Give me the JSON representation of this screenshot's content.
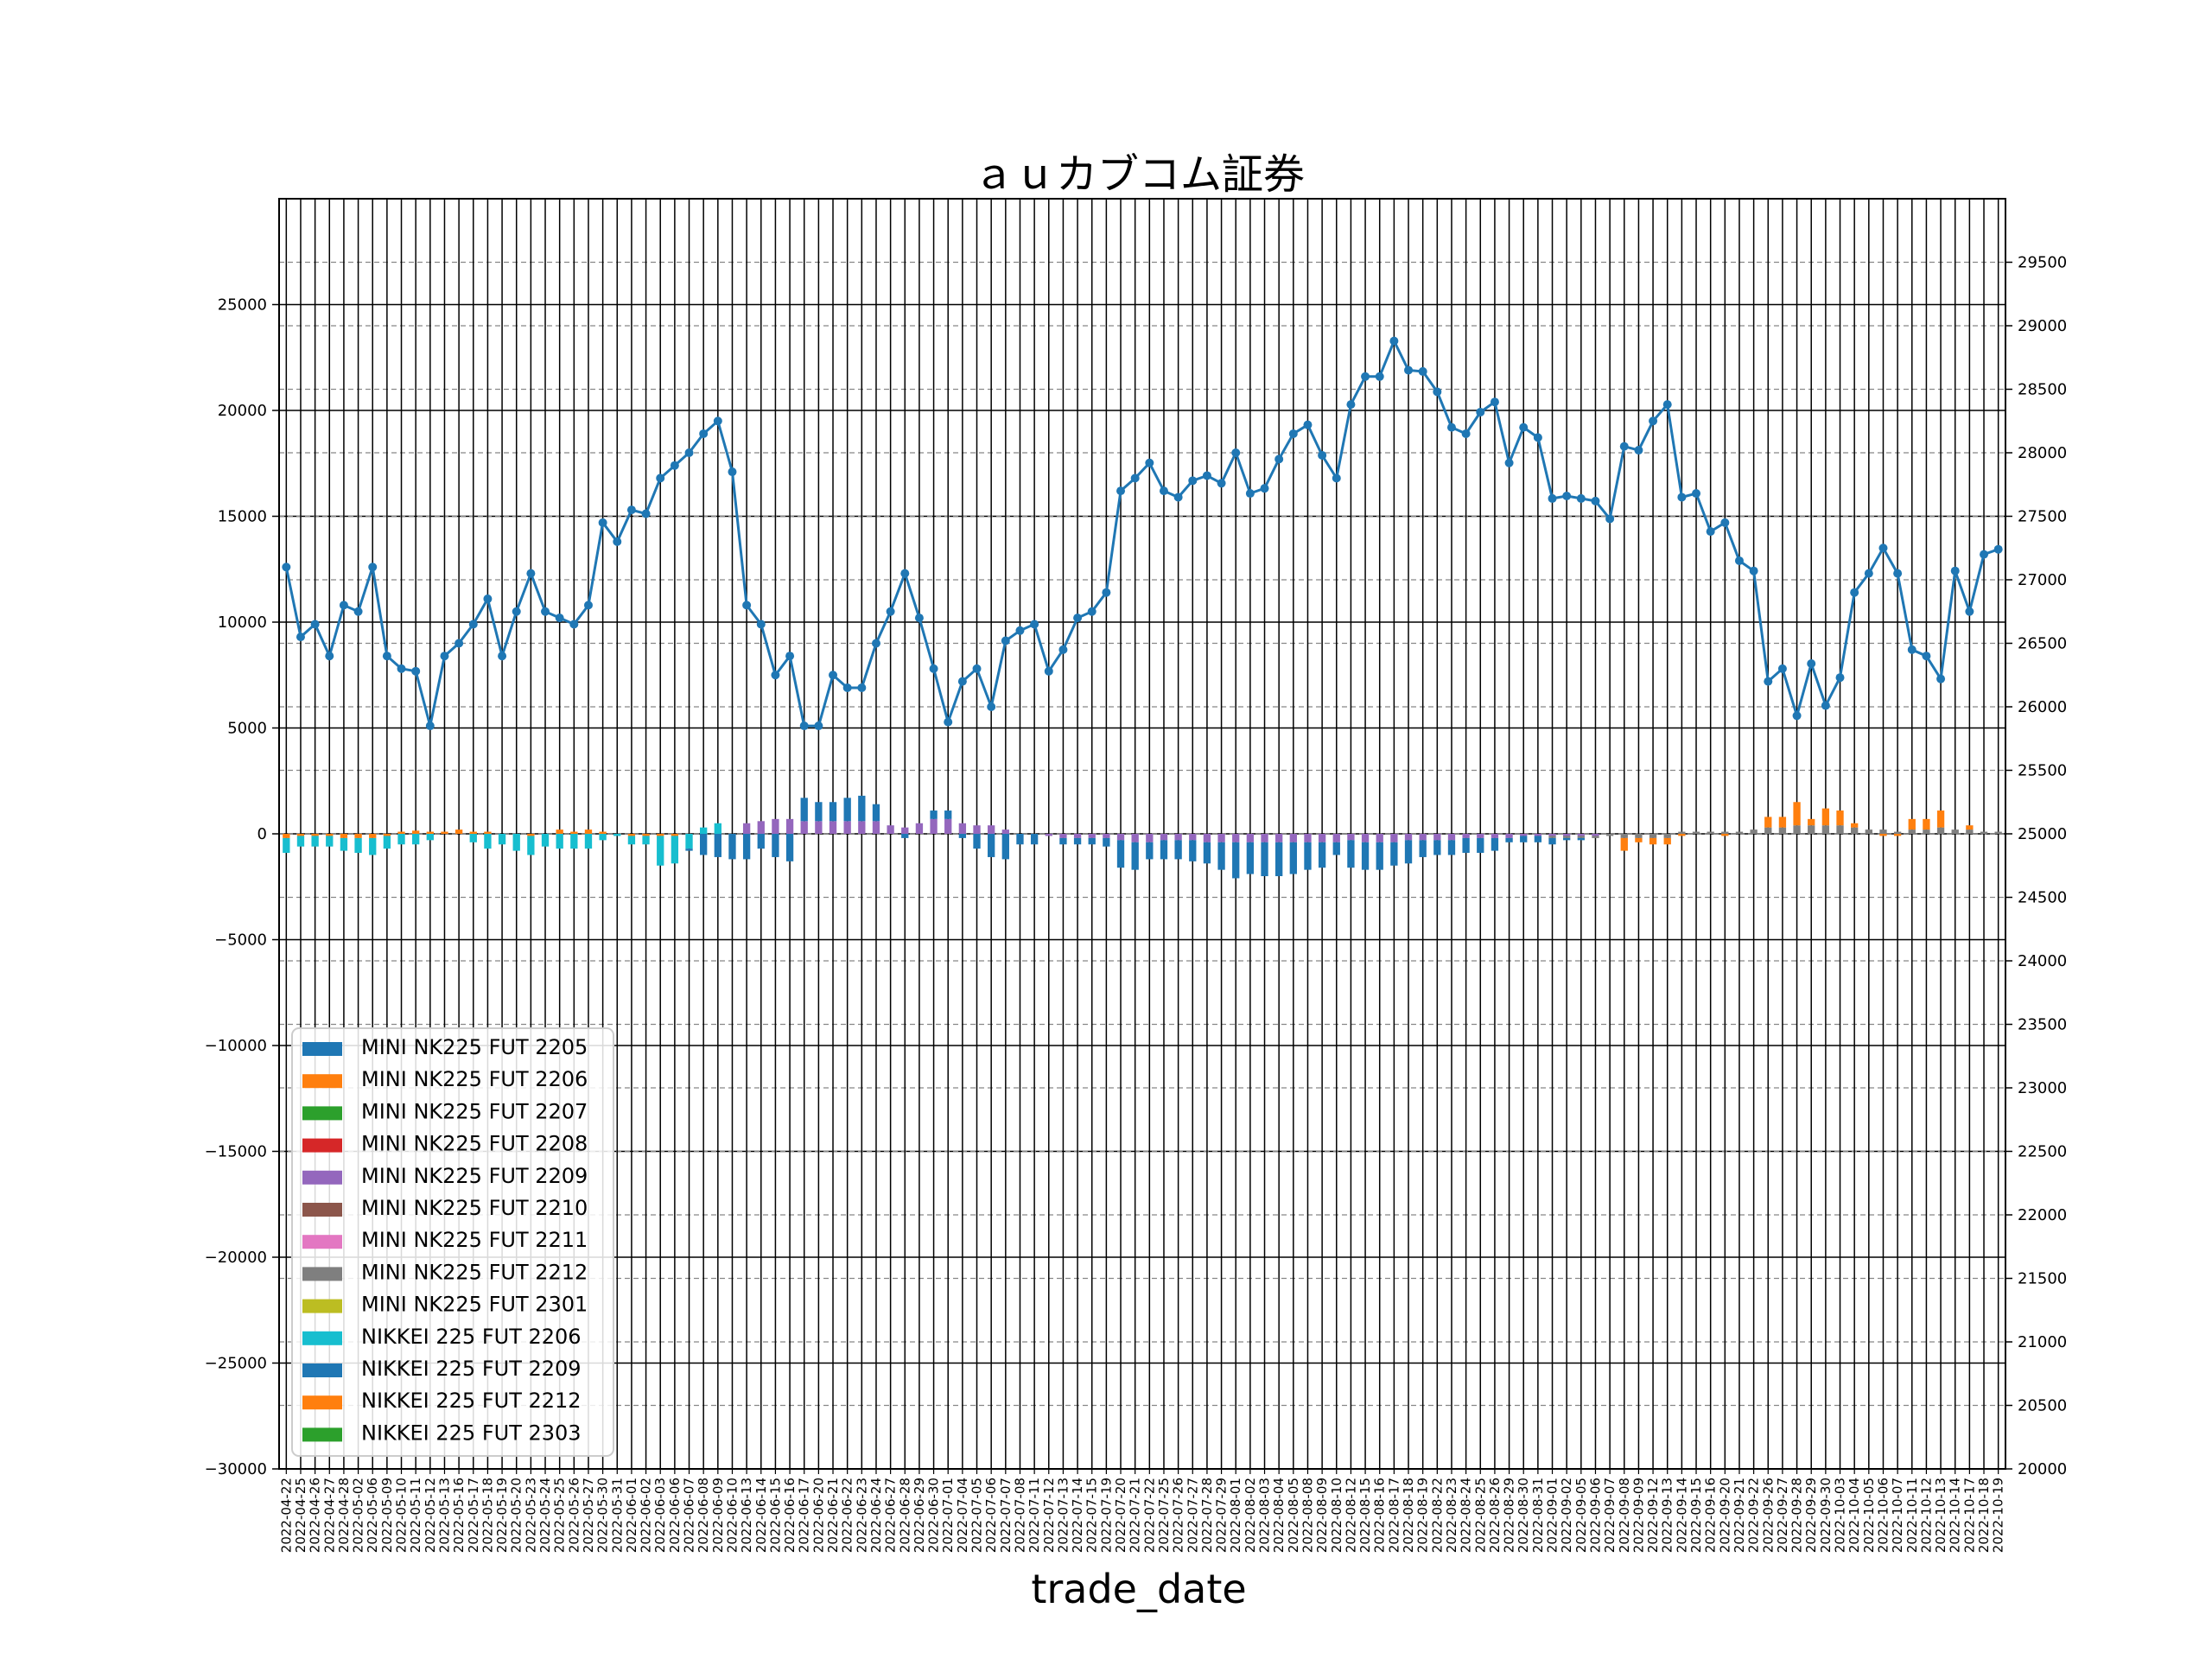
{
  "chart_data": {
    "type": "bar",
    "title": "ａｕカブコム証券",
    "xlabel": "trade_date",
    "ylabel": "",
    "ylim": [
      -30000,
      30000
    ],
    "y_ticks": [
      -30000,
      -25000,
      -20000,
      -15000,
      -10000,
      -5000,
      0,
      5000,
      10000,
      15000,
      20000,
      25000
    ],
    "y_tick_labels": [
      "−30000",
      "−25000",
      "−20000",
      "−15000",
      "−10000",
      "−5000",
      "0",
      "5000",
      "10000",
      "15000",
      "20000",
      "25000"
    ],
    "y2lim": [
      20000,
      30000
    ],
    "y2_ticks": [
      20000,
      20500,
      21000,
      21500,
      22000,
      22500,
      23000,
      23500,
      24000,
      24500,
      25000,
      25500,
      26000,
      26500,
      27000,
      27500,
      28000,
      28500,
      29000,
      29500
    ],
    "y2_tick_labels": [
      "20000",
      "20500",
      "21000",
      "21500",
      "22000",
      "22500",
      "23000",
      "23500",
      "24000",
      "24500",
      "25000",
      "25500",
      "26000",
      "26500",
      "27000",
      "27500",
      "28000",
      "28500",
      "29000",
      "29500"
    ],
    "grid": true,
    "legend_position": "bottom-left",
    "colors": {
      "MINI NK225 FUT 2205": "#1f77b4",
      "MINI NK225 FUT 2206": "#ff7f0e",
      "MINI NK225 FUT 2207": "#2ca02c",
      "MINI NK225 FUT 2208": "#d62728",
      "MINI NK225 FUT 2209": "#9467bd",
      "MINI NK225 FUT 2210": "#8c564b",
      "MINI NK225 FUT 2211": "#e377c2",
      "MINI NK225 FUT 2212": "#7f7f7f",
      "MINI NK225 FUT 2301": "#bcbd22",
      "NIKKEI 225 FUT 2206": "#17becf",
      "NIKKEI 225 FUT 2209": "#1f77b4",
      "NIKKEI 225 FUT 2212": "#ff7f0e",
      "NIKKEI 225 FUT 2303": "#2ca02c",
      "price_line": "#1f77b4"
    },
    "legend": [
      "MINI NK225 FUT 2205",
      "MINI NK225 FUT 2206",
      "MINI NK225 FUT 2207",
      "MINI NK225 FUT 2208",
      "MINI NK225 FUT 2209",
      "MINI NK225 FUT 2210",
      "MINI NK225 FUT 2211",
      "MINI NK225 FUT 2212",
      "MINI NK225 FUT 2301",
      "NIKKEI 225 FUT 2206",
      "NIKKEI 225 FUT 2209",
      "NIKKEI 225 FUT 2212",
      "NIKKEI 225 FUT 2303"
    ],
    "categories": [
      "2022-04-22",
      "2022-04-25",
      "2022-04-26",
      "2022-04-27",
      "2022-04-28",
      "2022-05-02",
      "2022-05-06",
      "2022-05-09",
      "2022-05-10",
      "2022-05-11",
      "2022-05-12",
      "2022-05-13",
      "2022-05-16",
      "2022-05-17",
      "2022-05-18",
      "2022-05-19",
      "2022-05-20",
      "2022-05-23",
      "2022-05-24",
      "2022-05-25",
      "2022-05-26",
      "2022-05-27",
      "2022-05-30",
      "2022-05-31",
      "2022-06-01",
      "2022-06-02",
      "2022-06-03",
      "2022-06-06",
      "2022-06-07",
      "2022-06-08",
      "2022-06-09",
      "2022-06-10",
      "2022-06-13",
      "2022-06-14",
      "2022-06-15",
      "2022-06-16",
      "2022-06-17",
      "2022-06-20",
      "2022-06-21",
      "2022-06-22",
      "2022-06-23",
      "2022-06-24",
      "2022-06-27",
      "2022-06-28",
      "2022-06-29",
      "2022-06-30",
      "2022-07-01",
      "2022-07-04",
      "2022-07-05",
      "2022-07-06",
      "2022-07-07",
      "2022-07-08",
      "2022-07-11",
      "2022-07-12",
      "2022-07-13",
      "2022-07-14",
      "2022-07-15",
      "2022-07-19",
      "2022-07-20",
      "2022-07-21",
      "2022-07-22",
      "2022-07-25",
      "2022-07-26",
      "2022-07-27",
      "2022-07-28",
      "2022-07-29",
      "2022-08-01",
      "2022-08-02",
      "2022-08-03",
      "2022-08-04",
      "2022-08-05",
      "2022-08-08",
      "2022-08-09",
      "2022-08-10",
      "2022-08-12",
      "2022-08-15",
      "2022-08-16",
      "2022-08-17",
      "2022-08-18",
      "2022-08-19",
      "2022-08-22",
      "2022-08-23",
      "2022-08-24",
      "2022-08-25",
      "2022-08-26",
      "2022-08-29",
      "2022-08-30",
      "2022-08-31",
      "2022-09-01",
      "2022-09-02",
      "2022-09-05",
      "2022-09-06",
      "2022-09-07",
      "2022-09-08",
      "2022-09-09",
      "2022-09-12",
      "2022-09-13",
      "2022-09-14",
      "2022-09-15",
      "2022-09-16",
      "2022-09-20",
      "2022-09-21",
      "2022-09-22",
      "2022-09-26",
      "2022-09-27",
      "2022-09-28",
      "2022-09-29",
      "2022-09-30",
      "2022-10-03",
      "2022-10-04",
      "2022-10-05",
      "2022-10-06",
      "2022-10-07",
      "2022-10-11",
      "2022-10-12",
      "2022-10-13",
      "2022-10-14",
      "2022-10-17",
      "2022-10-18",
      "2022-10-19"
    ],
    "price_series": [
      27100,
      26550,
      26650,
      26400,
      26800,
      26750,
      27100,
      26400,
      26300,
      26280,
      25850,
      26400,
      26500,
      26650,
      26850,
      26400,
      26750,
      27050,
      26750,
      26700,
      26650,
      26800,
      27450,
      27300,
      27550,
      27520,
      27800,
      27900,
      28000,
      28150,
      28250,
      27850,
      26800,
      26650,
      26250,
      26400,
      25850,
      25850,
      26250,
      26150,
      26150,
      26500,
      26750,
      27050,
      26700,
      26300,
      25880,
      26200,
      26300,
      26000,
      26520,
      26600,
      26650,
      26280,
      26450,
      26700,
      26750,
      26900,
      27700,
      27800,
      27920,
      27700,
      27650,
      27780,
      27820,
      27760,
      28000,
      27680,
      27720,
      27950,
      28150,
      28220,
      27980,
      27800,
      28380,
      28600,
      28600,
      28880,
      28650,
      28640,
      28480,
      28200,
      28150,
      28320,
      28400,
      27920,
      28200,
      28120,
      27640,
      27660,
      27640,
      27620,
      27480,
      28050,
      28020,
      28250,
      28380,
      27650,
      27680,
      27380,
      27450,
      27150,
      27070,
      26200,
      26300,
      25930,
      26340,
      26010,
      26230,
      26900,
      27050,
      27250,
      27050,
      26450,
      26400,
      26220,
      27070,
      26750,
      27200,
      27240
    ],
    "bar_groups": {
      "pos": [
        [
          "MINI NK225 FUT 2205",
          0,
          0,
          0,
          0,
          0,
          0,
          0,
          0,
          0,
          0,
          0,
          0,
          0,
          0,
          0,
          0,
          0,
          0,
          0,
          0,
          0,
          0,
          0,
          0,
          0,
          0,
          0,
          0,
          0,
          0,
          0,
          0,
          0,
          0,
          0,
          0,
          0,
          0,
          0,
          0,
          0,
          0,
          0,
          0,
          0,
          0,
          0,
          0,
          0,
          0,
          0,
          0,
          0,
          0,
          0,
          0,
          0,
          0,
          0,
          0,
          0,
          0,
          0,
          0,
          0,
          0,
          0,
          0,
          0,
          0,
          0,
          0,
          0,
          0,
          0,
          0,
          0,
          0,
          0,
          0,
          0,
          0,
          0,
          0,
          0,
          0,
          0,
          0,
          0,
          0,
          0,
          0,
          0,
          0,
          0,
          0,
          0,
          0,
          0,
          0,
          0,
          0,
          0,
          0,
          0,
          0,
          0,
          0,
          0,
          0,
          0,
          0,
          0,
          0,
          0,
          0,
          0,
          0,
          0,
          0
        ]
      ],
      "neg": []
    },
    "bars": {
      "MINI NK225 FUT 2206": [
        -200,
        -100,
        -100,
        -100,
        -200,
        -200,
        -200,
        -100,
        100,
        150,
        100,
        100,
        200,
        100,
        100,
        0,
        0,
        -100,
        0,
        200,
        100,
        200,
        100,
        0,
        -100,
        -100,
        -100,
        -100,
        0,
        0,
        0,
        0,
        0,
        0,
        0,
        0,
        0,
        0,
        0,
        0,
        0,
        0,
        0,
        0,
        0,
        0,
        0,
        0,
        0,
        0,
        0,
        0,
        0,
        0,
        0,
        0,
        0,
        0,
        0,
        0,
        0,
        0,
        0,
        0,
        0,
        0,
        0,
        0,
        0,
        0,
        0,
        0,
        0,
        0,
        0,
        0,
        0,
        0,
        0,
        0,
        0,
        0,
        0,
        0,
        0,
        0,
        0,
        0,
        0,
        0,
        0,
        0,
        0,
        0,
        0,
        0,
        0,
        0,
        0,
        0,
        0,
        0,
        0,
        0,
        0,
        0,
        0,
        0,
        0,
        0,
        0,
        0,
        0,
        0,
        0,
        0,
        0,
        0,
        0,
        0
      ],
      "MINI NK225 FUT 2209": [
        0,
        0,
        0,
        0,
        0,
        0,
        0,
        0,
        0,
        0,
        0,
        0,
        0,
        0,
        0,
        0,
        0,
        0,
        0,
        0,
        0,
        0,
        0,
        0,
        0,
        0,
        0,
        0,
        0,
        0,
        0,
        0,
        500,
        600,
        700,
        700,
        600,
        600,
        600,
        600,
        600,
        600,
        400,
        300,
        500,
        700,
        700,
        500,
        400,
        400,
        200,
        0,
        0,
        -100,
        -200,
        -200,
        -200,
        -200,
        -300,
        -400,
        -400,
        -300,
        -300,
        -300,
        -400,
        -400,
        -400,
        -400,
        -400,
        -400,
        -400,
        -400,
        -400,
        -400,
        -300,
        -400,
        -400,
        -400,
        -300,
        -300,
        -300,
        -300,
        -200,
        -200,
        -200,
        -200,
        -100,
        -100,
        -100,
        -100,
        -100,
        -100,
        0,
        0,
        0,
        0,
        0,
        0,
        0,
        0,
        0,
        0,
        0,
        0,
        0,
        0,
        0,
        0,
        0,
        0,
        0,
        0,
        0,
        0,
        0,
        0,
        0,
        0,
        0,
        0
      ],
      "MINI NK225 FUT 2212": [
        0,
        0,
        0,
        0,
        0,
        0,
        0,
        0,
        0,
        0,
        0,
        0,
        0,
        0,
        0,
        0,
        0,
        0,
        0,
        0,
        0,
        0,
        0,
        0,
        0,
        0,
        0,
        0,
        0,
        0,
        0,
        0,
        0,
        0,
        0,
        0,
        0,
        0,
        0,
        0,
        0,
        0,
        0,
        0,
        0,
        0,
        0,
        0,
        0,
        0,
        0,
        0,
        0,
        0,
        0,
        0,
        0,
        0,
        0,
        0,
        0,
        0,
        0,
        0,
        0,
        0,
        0,
        0,
        0,
        0,
        0,
        0,
        0,
        0,
        0,
        0,
        0,
        0,
        0,
        0,
        0,
        0,
        0,
        0,
        0,
        0,
        0,
        0,
        -100,
        -100,
        -100,
        -100,
        -100,
        -200,
        -200,
        -200,
        -200,
        100,
        100,
        100,
        100,
        100,
        200,
        300,
        300,
        400,
        400,
        400,
        400,
        300,
        200,
        200,
        100,
        200,
        200,
        300,
        200,
        200,
        100,
        100
      ],
      "NIKKEI 225 FUT 2206": [
        -700,
        -500,
        -500,
        -500,
        -600,
        -700,
        -800,
        -600,
        -500,
        -500,
        -300,
        0,
        0,
        -400,
        -700,
        -500,
        -800,
        -900,
        -600,
        -700,
        -700,
        -700,
        -300,
        -100,
        -400,
        -400,
        -1400,
        -1300,
        -700,
        300,
        500,
        0,
        0,
        0,
        0,
        0,
        0,
        0,
        0,
        0,
        0,
        0,
        0,
        0,
        0,
        0,
        0,
        0,
        0,
        0,
        0,
        0,
        0,
        0,
        0,
        0,
        0,
        0,
        0,
        0,
        0,
        0,
        0,
        0,
        0,
        0,
        0,
        0,
        0,
        0,
        0,
        0,
        0,
        0,
        0,
        0,
        0,
        0,
        0,
        0,
        0,
        0,
        0,
        0,
        0,
        0,
        0,
        0,
        0,
        0,
        0,
        0,
        0,
        0,
        0,
        0,
        0,
        0,
        0,
        0,
        0,
        0,
        0,
        0,
        0,
        0,
        0,
        0,
        0,
        0,
        0,
        0,
        0,
        0,
        0,
        0,
        0,
        0,
        0,
        0
      ],
      "NIKKEI 225 FUT 2209": [
        0,
        0,
        0,
        0,
        0,
        0,
        0,
        0,
        0,
        0,
        0,
        0,
        0,
        0,
        0,
        0,
        0,
        0,
        0,
        0,
        0,
        0,
        0,
        0,
        0,
        0,
        0,
        0,
        -100,
        -1000,
        -1100,
        -1200,
        -1200,
        -700,
        -1100,
        -1300,
        1100,
        900,
        900,
        1100,
        1200,
        800,
        0,
        -200,
        0,
        400,
        400,
        -200,
        -700,
        -1100,
        -1200,
        -500,
        -500,
        0,
        -300,
        -300,
        -300,
        -400,
        -1300,
        -1300,
        -800,
        -900,
        -900,
        -1000,
        -1000,
        -1300,
        -1700,
        -1500,
        -1600,
        -1600,
        -1500,
        -1300,
        -1200,
        -600,
        -1300,
        -1300,
        -1300,
        -1100,
        -1100,
        -800,
        -700,
        -700,
        -700,
        -700,
        -600,
        -200,
        -300,
        -300,
        -300,
        -100,
        -100,
        0,
        0,
        0,
        0,
        0,
        0,
        0,
        0,
        0,
        0,
        0,
        0,
        0,
        0,
        0,
        0,
        0,
        0,
        0,
        0,
        0,
        0,
        0,
        0,
        0,
        0,
        0,
        0,
        0
      ],
      "NIKKEI 225 FUT 2212": [
        0,
        0,
        0,
        0,
        0,
        0,
        0,
        0,
        0,
        0,
        0,
        0,
        0,
        0,
        0,
        0,
        0,
        0,
        0,
        0,
        0,
        0,
        0,
        0,
        0,
        0,
        0,
        0,
        0,
        0,
        0,
        0,
        0,
        0,
        0,
        0,
        0,
        0,
        0,
        0,
        0,
        0,
        0,
        0,
        0,
        0,
        0,
        0,
        0,
        0,
        0,
        0,
        0,
        0,
        0,
        0,
        0,
        0,
        0,
        0,
        0,
        0,
        0,
        0,
        0,
        0,
        0,
        0,
        0,
        0,
        0,
        0,
        0,
        0,
        0,
        0,
        0,
        0,
        0,
        0,
        0,
        0,
        0,
        0,
        0,
        0,
        0,
        0,
        0,
        0,
        0,
        0,
        0,
        -600,
        -200,
        -300,
        -300,
        -100,
        0,
        0,
        -100,
        0,
        0,
        500,
        500,
        1100,
        300,
        800,
        700,
        200,
        0,
        -100,
        -100,
        500,
        500,
        800,
        0,
        200,
        0,
        0
      ]
    }
  }
}
